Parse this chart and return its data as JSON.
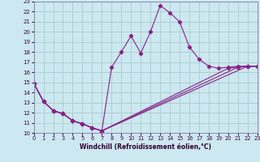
{
  "xlabel": "Windchill (Refroidissement éolien,°C)",
  "bg_color": "#cce8f0",
  "grid_color": "#aacccc",
  "line_color": "#882288",
  "xmin": 0,
  "xmax": 23,
  "ymin": 10,
  "ymax": 23,
  "line1_x": [
    0,
    1,
    2,
    3,
    4,
    5,
    6,
    7,
    8,
    9,
    10,
    11,
    12,
    13,
    14,
    15,
    16,
    17,
    18,
    19,
    20,
    21,
    22,
    23
  ],
  "line1_y": [
    14.9,
    13.1,
    12.2,
    11.9,
    11.2,
    10.9,
    10.5,
    10.2,
    16.5,
    18.0,
    19.6,
    17.9,
    20.0,
    22.6,
    21.9,
    21.0,
    18.5,
    17.3,
    16.6,
    16.4,
    16.5,
    16.6,
    16.6,
    16.6
  ],
  "line2_x": [
    0,
    1,
    2,
    3,
    4,
    5,
    6,
    7,
    22,
    23
  ],
  "line2_y": [
    14.9,
    13.1,
    12.2,
    11.9,
    11.2,
    10.9,
    10.5,
    10.2,
    16.6,
    16.6
  ],
  "line3_x": [
    0,
    1,
    2,
    3,
    4,
    5,
    6,
    7,
    21,
    22,
    23
  ],
  "line3_y": [
    14.9,
    13.1,
    12.2,
    11.9,
    11.2,
    10.9,
    10.5,
    10.2,
    16.5,
    16.6,
    16.6
  ],
  "line4_x": [
    0,
    1,
    2,
    3,
    4,
    5,
    6,
    7,
    20,
    21,
    22,
    23
  ],
  "line4_y": [
    14.9,
    13.1,
    12.2,
    11.9,
    11.2,
    10.9,
    10.5,
    10.2,
    16.4,
    16.5,
    16.6,
    16.6
  ]
}
